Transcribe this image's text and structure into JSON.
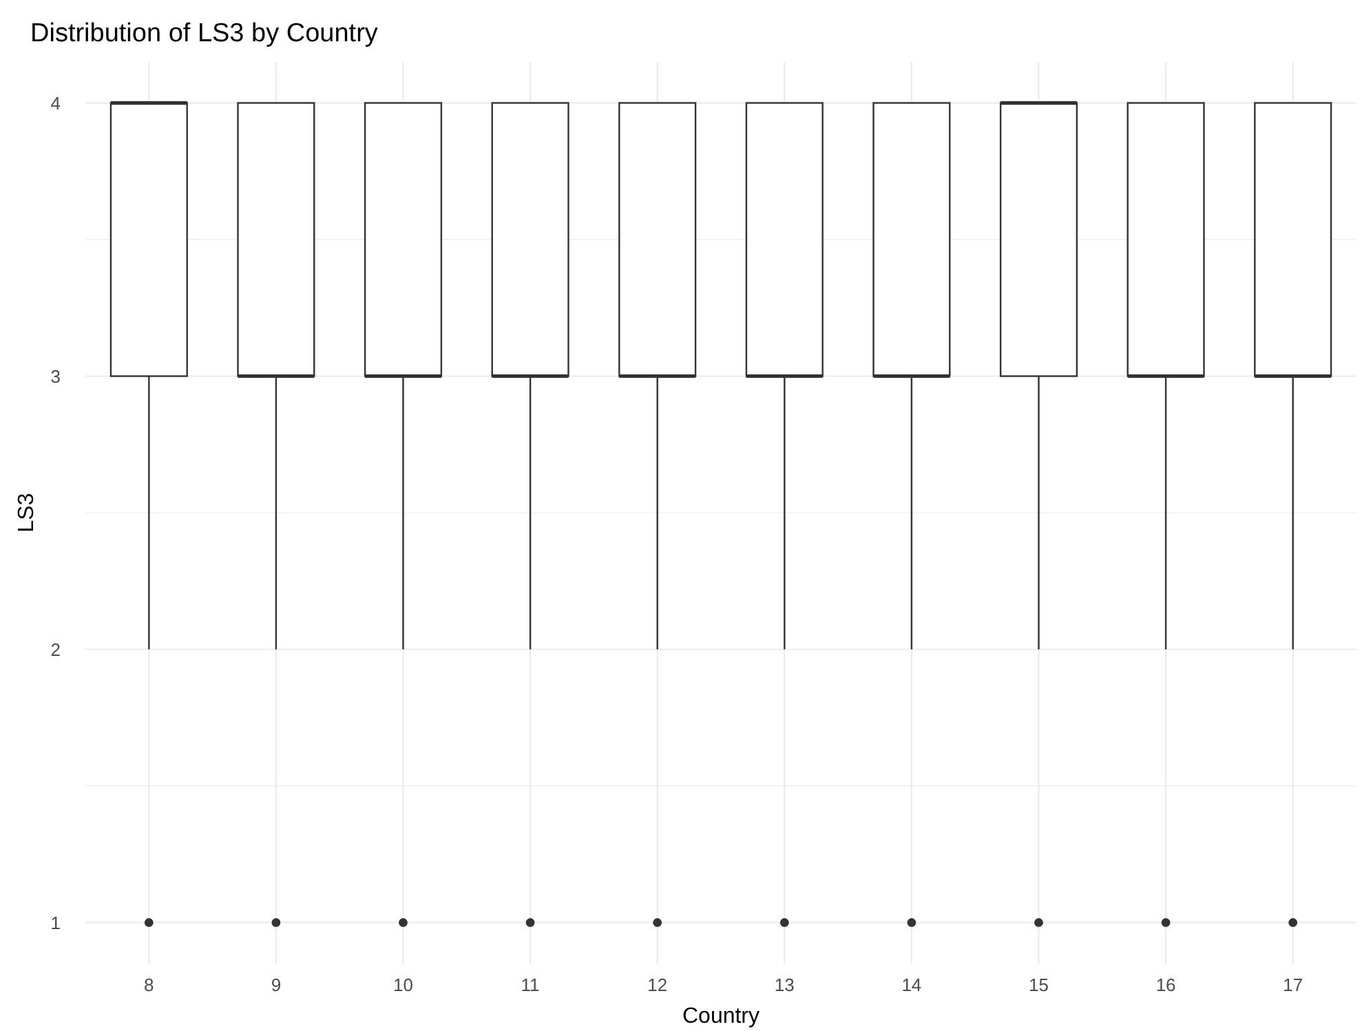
{
  "chart_data": {
    "type": "box",
    "title": "Distribution of LS3 by Country",
    "xlabel": "Country",
    "ylabel": "LS3",
    "categories": [
      "8",
      "9",
      "10",
      "11",
      "12",
      "13",
      "14",
      "15",
      "16",
      "17"
    ],
    "boxes": [
      {
        "low": 2,
        "q1": 3,
        "median": 4,
        "q3": 4,
        "high": 4,
        "outliers": [
          1
        ]
      },
      {
        "low": 2,
        "q1": 3,
        "median": 3,
        "q3": 4,
        "high": 4,
        "outliers": [
          1
        ]
      },
      {
        "low": 2,
        "q1": 3,
        "median": 3,
        "q3": 4,
        "high": 4,
        "outliers": [
          1
        ]
      },
      {
        "low": 2,
        "q1": 3,
        "median": 3,
        "q3": 4,
        "high": 4,
        "outliers": [
          1
        ]
      },
      {
        "low": 2,
        "q1": 3,
        "median": 3,
        "q3": 4,
        "high": 4,
        "outliers": [
          1
        ]
      },
      {
        "low": 2,
        "q1": 3,
        "median": 3,
        "q3": 4,
        "high": 4,
        "outliers": [
          1
        ]
      },
      {
        "low": 2,
        "q1": 3,
        "median": 3,
        "q3": 4,
        "high": 4,
        "outliers": [
          1
        ]
      },
      {
        "low": 2,
        "q1": 3,
        "median": 4,
        "q3": 4,
        "high": 4,
        "outliers": [
          1
        ]
      },
      {
        "low": 2,
        "q1": 3,
        "median": 3,
        "q3": 4,
        "high": 4,
        "outliers": [
          1
        ]
      },
      {
        "low": 2,
        "q1": 3,
        "median": 3,
        "q3": 4,
        "high": 4,
        "outliers": [
          1
        ]
      }
    ],
    "ylim": [
      0.85,
      4.15
    ],
    "yticks": [
      1,
      {
        "value": 1.5,
        "label": null
      },
      2,
      {
        "value": 2.5,
        "label": null
      },
      3,
      {
        "value": 3.5,
        "label": null
      },
      4
    ],
    "grid": true
  }
}
